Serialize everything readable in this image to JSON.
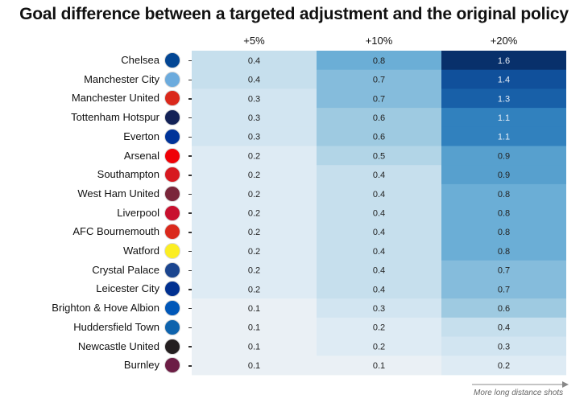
{
  "chart_data": {
    "type": "heatmap",
    "title": "Goal difference between a targeted adjustment and the original policy",
    "columns": [
      "+5%",
      "+10%",
      "+20%"
    ],
    "rows": [
      {
        "team": "Chelsea",
        "crest": "chelsea-crest",
        "crest_color": "#034694",
        "values": [
          0.4,
          0.8,
          1.6
        ]
      },
      {
        "team": "Manchester City",
        "crest": "manchester-city-crest",
        "crest_color": "#6CABDD",
        "values": [
          0.4,
          0.7,
          1.4
        ]
      },
      {
        "team": "Manchester United",
        "crest": "manchester-united-crest",
        "crest_color": "#DA291C",
        "values": [
          0.3,
          0.7,
          1.3
        ]
      },
      {
        "team": "Tottenham Hotspur",
        "crest": "tottenham-hotspur-crest",
        "crest_color": "#132257",
        "values": [
          0.3,
          0.6,
          1.1
        ]
      },
      {
        "team": "Everton",
        "crest": "everton-crest",
        "crest_color": "#003399",
        "values": [
          0.3,
          0.6,
          1.1
        ]
      },
      {
        "team": "Arsenal",
        "crest": "arsenal-crest",
        "crest_color": "#EF0107",
        "values": [
          0.2,
          0.5,
          0.9
        ]
      },
      {
        "team": "Southampton",
        "crest": "southampton-crest",
        "crest_color": "#D71920",
        "values": [
          0.2,
          0.4,
          0.9
        ]
      },
      {
        "team": "West Ham United",
        "crest": "west-ham-united-crest",
        "crest_color": "#7A263A",
        "values": [
          0.2,
          0.4,
          0.8
        ]
      },
      {
        "team": "Liverpool",
        "crest": "liverpool-crest",
        "crest_color": "#C8102E",
        "values": [
          0.2,
          0.4,
          0.8
        ]
      },
      {
        "team": "AFC Bournemouth",
        "crest": "afc-bournemouth-crest",
        "crest_color": "#DA291C",
        "values": [
          0.2,
          0.4,
          0.8
        ]
      },
      {
        "team": "Watford",
        "crest": "watford-crest",
        "crest_color": "#FBEE23",
        "values": [
          0.2,
          0.4,
          0.8
        ]
      },
      {
        "team": "Crystal Palace",
        "crest": "crystal-palace-crest",
        "crest_color": "#1B458F",
        "values": [
          0.2,
          0.4,
          0.7
        ]
      },
      {
        "team": "Leicester City",
        "crest": "leicester-city-crest",
        "crest_color": "#003090",
        "values": [
          0.2,
          0.4,
          0.7
        ]
      },
      {
        "team": "Brighton & Hove Albion",
        "crest": "brighton-crest",
        "crest_color": "#0057B8",
        "values": [
          0.1,
          0.3,
          0.6
        ]
      },
      {
        "team": "Huddersfield Town",
        "crest": "huddersfield-town-crest",
        "crest_color": "#0E63AD",
        "values": [
          0.1,
          0.2,
          0.4
        ]
      },
      {
        "team": "Newcastle United",
        "crest": "newcastle-united-crest",
        "crest_color": "#241F20",
        "values": [
          0.1,
          0.2,
          0.3
        ]
      },
      {
        "team": "Burnley",
        "crest": "burnley-crest",
        "crest_color": "#6C1D45",
        "values": [
          0.1,
          0.1,
          0.2
        ]
      }
    ],
    "color_scale": {
      "name": "Blues",
      "min": 0.0,
      "max": 1.6,
      "low_color": "#f4f4f4",
      "high_color": "#08306b"
    },
    "annotation": "More long distance shots",
    "legend": "none"
  }
}
